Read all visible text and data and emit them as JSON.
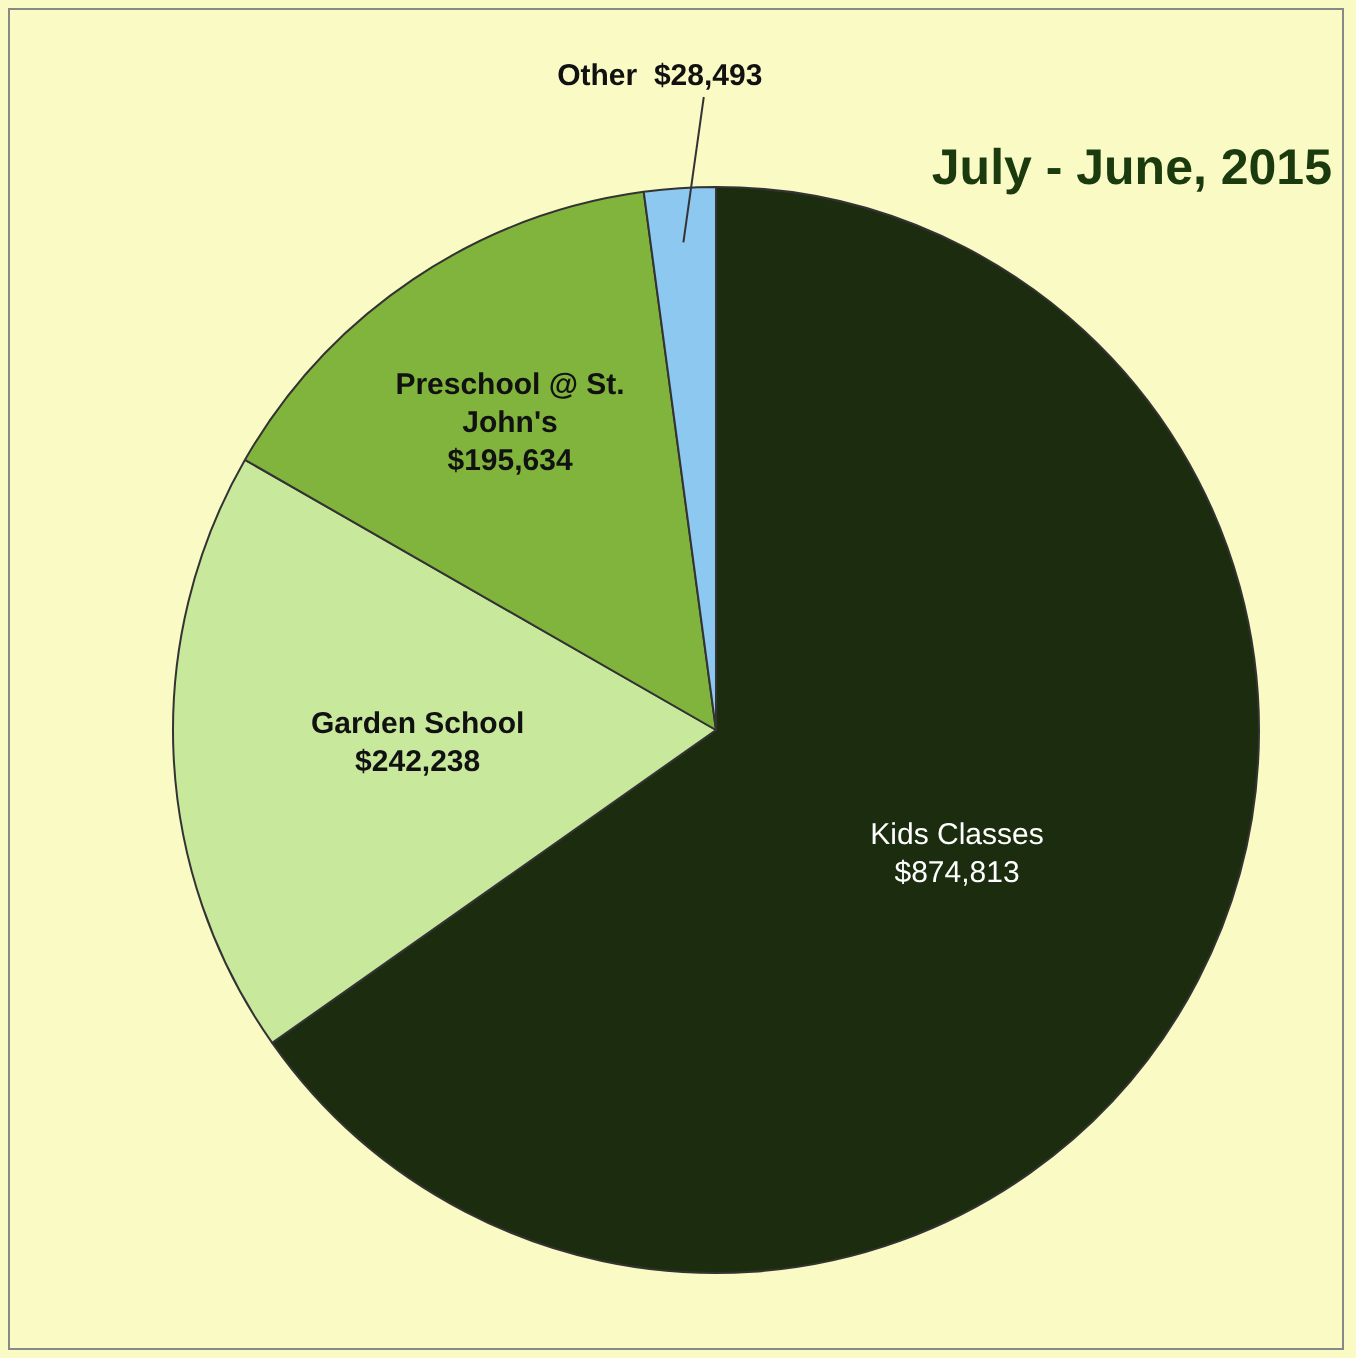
{
  "chart_data": {
    "type": "pie",
    "title": "July - June, 2015",
    "categories": [
      "Kids Classes",
      "Garden School",
      "Preschool @ St. John's",
      "Other"
    ],
    "values": [
      874813,
      242238,
      195634,
      28493
    ],
    "value_labels": [
      "$874,813",
      "$242,238",
      "$195,634",
      "$28,493"
    ],
    "colors": [
      "#1b2d0e",
      "#c8e89c",
      "#80b43c",
      "#8cc8f0"
    ],
    "legend": false
  }
}
